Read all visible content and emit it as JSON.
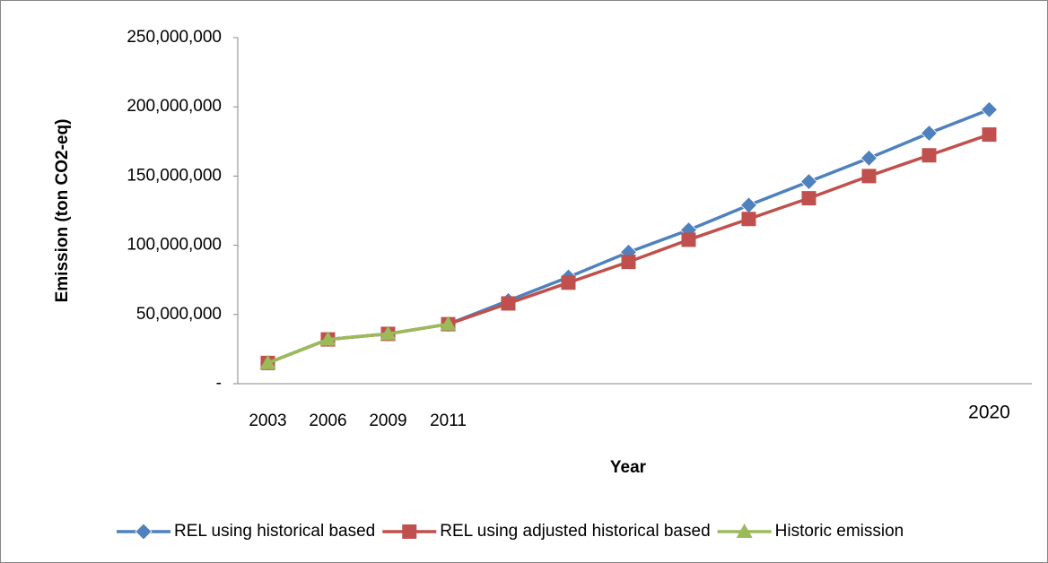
{
  "chart_data": {
    "type": "line",
    "x_label": "Year",
    "y_label": "Emission (ton CO2-eq)",
    "categories": [
      "2003",
      "2006",
      "2009",
      "2011",
      null,
      null,
      null,
      null,
      null,
      null,
      null,
      null,
      "2020"
    ],
    "series": [
      {
        "name": "REL using historical based",
        "color": "#4f81bd",
        "marker": "diamond",
        "values": [
          15000000,
          32000000,
          36000000,
          43000000,
          60000000,
          77000000,
          95000000,
          111000000,
          129000000,
          146000000,
          163000000,
          181000000,
          198000000
        ]
      },
      {
        "name": "REL using adjusted historical based",
        "color": "#c0504d",
        "marker": "square",
        "values": [
          15000000,
          32000000,
          36000000,
          43000000,
          58000000,
          73000000,
          88000000,
          104000000,
          119000000,
          134000000,
          150000000,
          165000000,
          180000000
        ]
      },
      {
        "name": "Historic emission",
        "color": "#9bbb59",
        "marker": "triangle",
        "values": [
          15000000,
          32000000,
          36000000,
          43000000,
          null,
          null,
          null,
          null,
          null,
          null,
          null,
          null,
          null
        ]
      }
    ],
    "ylim": [
      0,
      250000000
    ],
    "yticks": [
      {
        "value": 0,
        "label": "-"
      },
      {
        "value": 50000000,
        "label": "50,000,000"
      },
      {
        "value": 100000000,
        "label": "100,000,000"
      },
      {
        "value": 150000000,
        "label": "150,000,000"
      },
      {
        "value": 200000000,
        "label": "200,000,000"
      },
      {
        "value": 250000000,
        "label": "250,000,000"
      }
    ],
    "grid": false,
    "legend": "bottom"
  }
}
